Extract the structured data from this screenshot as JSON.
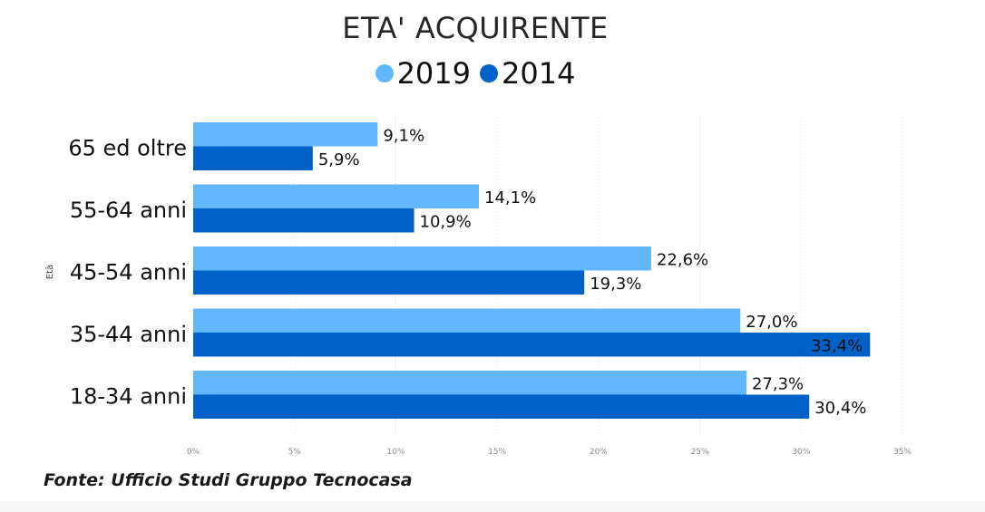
{
  "chart_data": {
    "type": "bar",
    "orientation": "horizontal",
    "title": "ETA' ACQUIRENTE",
    "ylabel": "Età",
    "xlabel": "",
    "categories": [
      "65 ed oltre",
      "55-64 anni",
      "45-54 anni",
      "35-44 anni",
      "18-34 anni"
    ],
    "series": [
      {
        "name": "2019",
        "color": "#62b6fc",
        "values": [
          9.1,
          14.1,
          22.6,
          27.0,
          27.3
        ],
        "labels": [
          "9,1%",
          "14,1%",
          "22,6%",
          "27,0%",
          "27,3%"
        ]
      },
      {
        "name": "2014",
        "color": "#0062c8",
        "values": [
          5.9,
          10.9,
          19.3,
          33.4,
          30.4
        ],
        "labels": [
          "5,9%",
          "10,9%",
          "19,3%",
          "33,4%",
          "30,4%"
        ]
      }
    ],
    "xlim": [
      0,
      35
    ],
    "xticks": [
      0,
      5,
      10,
      15,
      20,
      25,
      30,
      35
    ],
    "xtick_labels": [
      "0%",
      "5%",
      "10%",
      "15%",
      "20%",
      "25%",
      "30%",
      "35%"
    ],
    "grid": true,
    "legend_position": "top-center"
  },
  "footer": {
    "source": "Fonte: Ufficio Studi Gruppo Tecnocasa"
  }
}
